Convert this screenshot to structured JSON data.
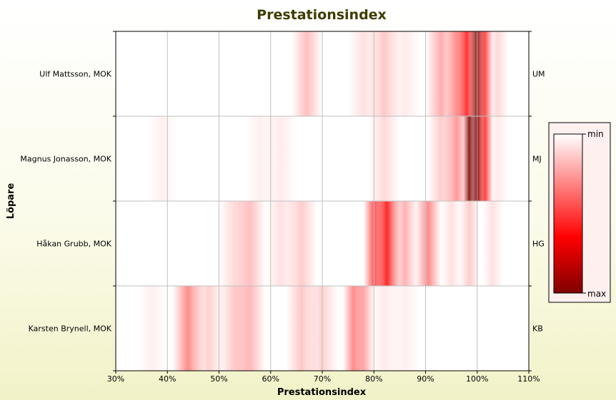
{
  "chart_data": {
    "type": "heatmap",
    "title": "Prestationsindex",
    "xlabel": "Prestationsindex",
    "ylabel": "Löpare",
    "x_unit": "%",
    "xlim": [
      30,
      110
    ],
    "x_ticks": [
      "30%",
      "40%",
      "50%",
      "60%",
      "70%",
      "80%",
      "90%",
      "100%",
      "110%"
    ],
    "grid": true,
    "colors": {
      "min": "#ffffff",
      "mid": "#ff0000",
      "max": "#800000",
      "title": "#3d3d00"
    },
    "legend": {
      "placement": "right",
      "min_label": "min",
      "max_label": "max"
    },
    "rows": [
      {
        "name": "Ulf Mattsson, MOK",
        "abbr": "UM",
        "bands": [
          {
            "center": 67,
            "width": 3,
            "intensity": 0.25
          },
          {
            "center": 78,
            "width": 3,
            "intensity": 0.12
          },
          {
            "center": 82,
            "width": 3,
            "intensity": 0.22
          },
          {
            "center": 86,
            "width": 3,
            "intensity": 0.08
          },
          {
            "center": 93,
            "width": 3,
            "intensity": 0.32
          },
          {
            "center": 96,
            "width": 2,
            "intensity": 0.45
          },
          {
            "center": 98,
            "width": 2,
            "intensity": 0.8
          },
          {
            "center": 100,
            "width": 1.5,
            "intensity": 0.9
          },
          {
            "center": 101.5,
            "width": 1.5,
            "intensity": 0.7
          },
          {
            "center": 104,
            "width": 2,
            "intensity": 0.15
          }
        ]
      },
      {
        "name": "Magnus Jonasson, MOK",
        "abbr": "MJ",
        "bands": [
          {
            "center": 39,
            "width": 3,
            "intensity": 0.06
          },
          {
            "center": 58,
            "width": 3,
            "intensity": 0.06
          },
          {
            "center": 62,
            "width": 3,
            "intensity": 0.08
          },
          {
            "center": 82,
            "width": 3,
            "intensity": 0.15
          },
          {
            "center": 93,
            "width": 2.5,
            "intensity": 0.2
          },
          {
            "center": 96,
            "width": 2.5,
            "intensity": 0.4
          },
          {
            "center": 98.5,
            "width": 1.2,
            "intensity": 0.9
          },
          {
            "center": 100,
            "width": 1.3,
            "intensity": 1.0
          },
          {
            "center": 101.5,
            "width": 1.5,
            "intensity": 0.75
          },
          {
            "center": 104,
            "width": 2,
            "intensity": 0.08
          }
        ]
      },
      {
        "name": "Håkan Grubb, MOK",
        "abbr": "HG",
        "bands": [
          {
            "center": 53,
            "width": 3,
            "intensity": 0.15
          },
          {
            "center": 56,
            "width": 3,
            "intensity": 0.25
          },
          {
            "center": 62,
            "width": 3,
            "intensity": 0.12
          },
          {
            "center": 66,
            "width": 3,
            "intensity": 0.2
          },
          {
            "center": 80,
            "width": 2,
            "intensity": 0.65
          },
          {
            "center": 82.5,
            "width": 2.5,
            "intensity": 0.85
          },
          {
            "center": 86,
            "width": 2.5,
            "intensity": 0.3
          },
          {
            "center": 90.5,
            "width": 2.5,
            "intensity": 0.45
          },
          {
            "center": 95,
            "width": 2,
            "intensity": 0.12
          },
          {
            "center": 98.5,
            "width": 2,
            "intensity": 0.2
          },
          {
            "center": 103,
            "width": 2,
            "intensity": 0.12
          }
        ]
      },
      {
        "name": "Karsten Brynell, MOK",
        "abbr": "KB",
        "bands": [
          {
            "center": 37,
            "width": 3,
            "intensity": 0.06
          },
          {
            "center": 44,
            "width": 3,
            "intensity": 0.45
          },
          {
            "center": 48,
            "width": 3,
            "intensity": 0.18
          },
          {
            "center": 53,
            "width": 3,
            "intensity": 0.22
          },
          {
            "center": 56,
            "width": 3,
            "intensity": 0.28
          },
          {
            "center": 66,
            "width": 3,
            "intensity": 0.22
          },
          {
            "center": 70,
            "width": 3,
            "intensity": 0.18
          },
          {
            "center": 76,
            "width": 2,
            "intensity": 0.45
          },
          {
            "center": 78,
            "width": 2,
            "intensity": 0.35
          },
          {
            "center": 82,
            "width": 3,
            "intensity": 0.08
          },
          {
            "center": 86,
            "width": 3,
            "intensity": 0.06
          }
        ]
      }
    ]
  }
}
